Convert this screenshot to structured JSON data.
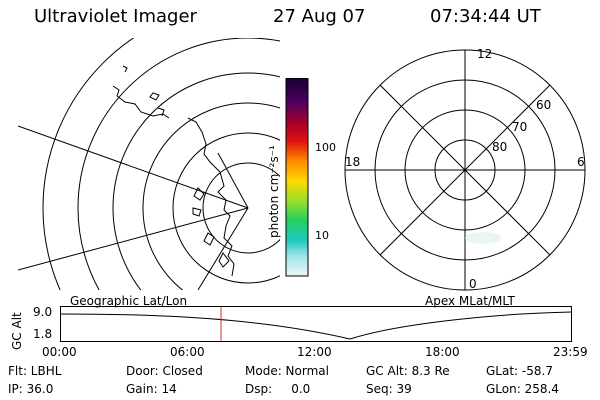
{
  "header": {
    "instrument": "Ultraviolet Imager",
    "date": "27 Aug 07",
    "time": "07:34:44 UT"
  },
  "colorbar": {
    "ticks": [
      "100",
      "10"
    ],
    "label": "photon cm⁻²s⁻¹"
  },
  "polar": {
    "mlt_labels": [
      "12",
      "18",
      "6",
      "0"
    ],
    "lat_labels": [
      "60",
      "70",
      "80"
    ]
  },
  "panels": {
    "left_label": "Geographic Lat/Lon",
    "right_label": "Apex MLat/MLT"
  },
  "orbit": {
    "ylabel": "GC Alt",
    "yticks": [
      "9.0",
      "1.8"
    ],
    "xticks": [
      "00:00",
      "06:00",
      "12:00",
      "18:00",
      "23:59"
    ],
    "marker_time": "07:34:44"
  },
  "info": {
    "flt": "Flt: LBHL",
    "ip": "IP: 36.0",
    "door": "Door: Closed",
    "gain": "Gain: 14",
    "mode": "Mode: Normal",
    "dsp": "Dsp:     0.0",
    "gcalt": "GC Alt: 8.3 Re",
    "seq": "Seq: 39",
    "glat": "GLat: -58.7",
    "glon": "GLon: 258.4"
  }
}
